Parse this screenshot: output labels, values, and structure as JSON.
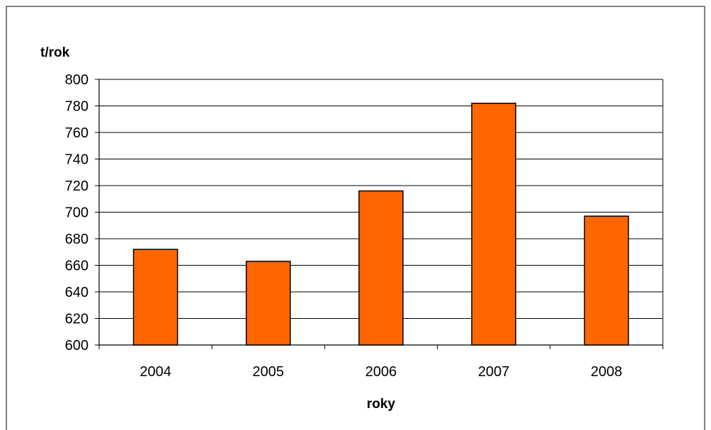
{
  "chart_data": {
    "type": "bar",
    "categories": [
      "2004",
      "2005",
      "2006",
      "2007",
      "2008"
    ],
    "values": [
      672,
      663,
      716,
      782,
      697
    ],
    "title": "",
    "xlabel": "roky",
    "ylabel": "t/rok",
    "ylim": [
      600,
      800
    ],
    "ytick_step": 20,
    "grid": true,
    "legend": "none",
    "bar_color": "#FF6600",
    "bar_edge_color": "#000000",
    "grid_color": "#000000"
  }
}
